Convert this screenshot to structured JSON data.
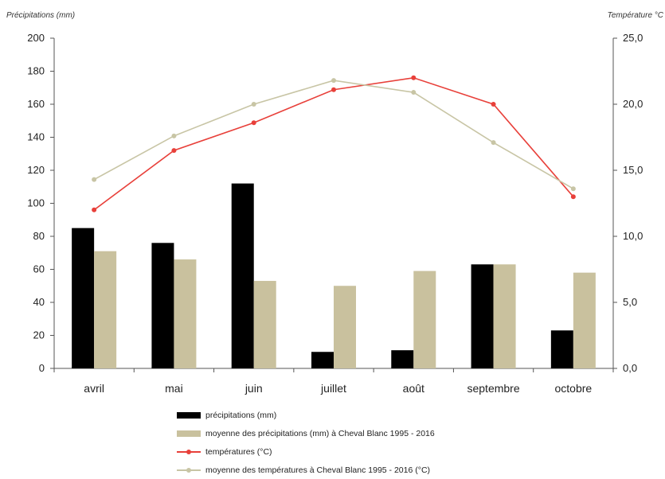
{
  "chart_data": {
    "type": "bar",
    "ylabel": "Précipitations (mm)",
    "y2label": "Température °C",
    "categories": [
      "avril",
      "mai",
      "juin",
      "juillet",
      "août",
      "septembre",
      "octobre"
    ],
    "ylim": [
      0,
      200
    ],
    "y2lim": [
      0,
      25
    ],
    "yticks": [
      "0",
      "20",
      "40",
      "60",
      "80",
      "100",
      "120",
      "140",
      "160",
      "180",
      "200"
    ],
    "y2ticks": [
      "0,0",
      "5,0",
      "10,0",
      "15,0",
      "20,0",
      "25,0"
    ],
    "series": [
      {
        "name": "précipitations (mm)",
        "kind": "bar",
        "axis": "left",
        "color": "#000000",
        "values": [
          85,
          76,
          112,
          10,
          11,
          63,
          23
        ]
      },
      {
        "name": "moyenne des précipitations (mm) à Cheval Blanc 1995 - 2016",
        "kind": "bar",
        "axis": "left",
        "color": "#c9c19e",
        "values": [
          71,
          66,
          53,
          50,
          59,
          63,
          58
        ]
      },
      {
        "name": "températures (°C)",
        "kind": "line",
        "axis": "right",
        "color": "#e8403a",
        "values": [
          12.0,
          16.5,
          18.6,
          21.1,
          22.0,
          20.0,
          13.0
        ]
      },
      {
        "name": "moyenne des températures à Cheval Blanc 1995 - 2016 (°C)",
        "kind": "line",
        "axis": "right",
        "color": "#c8c5a5",
        "values": [
          14.3,
          17.6,
          20.0,
          21.8,
          20.9,
          17.1,
          13.6
        ]
      }
    ],
    "legend_position": "bottom",
    "grid": false
  }
}
